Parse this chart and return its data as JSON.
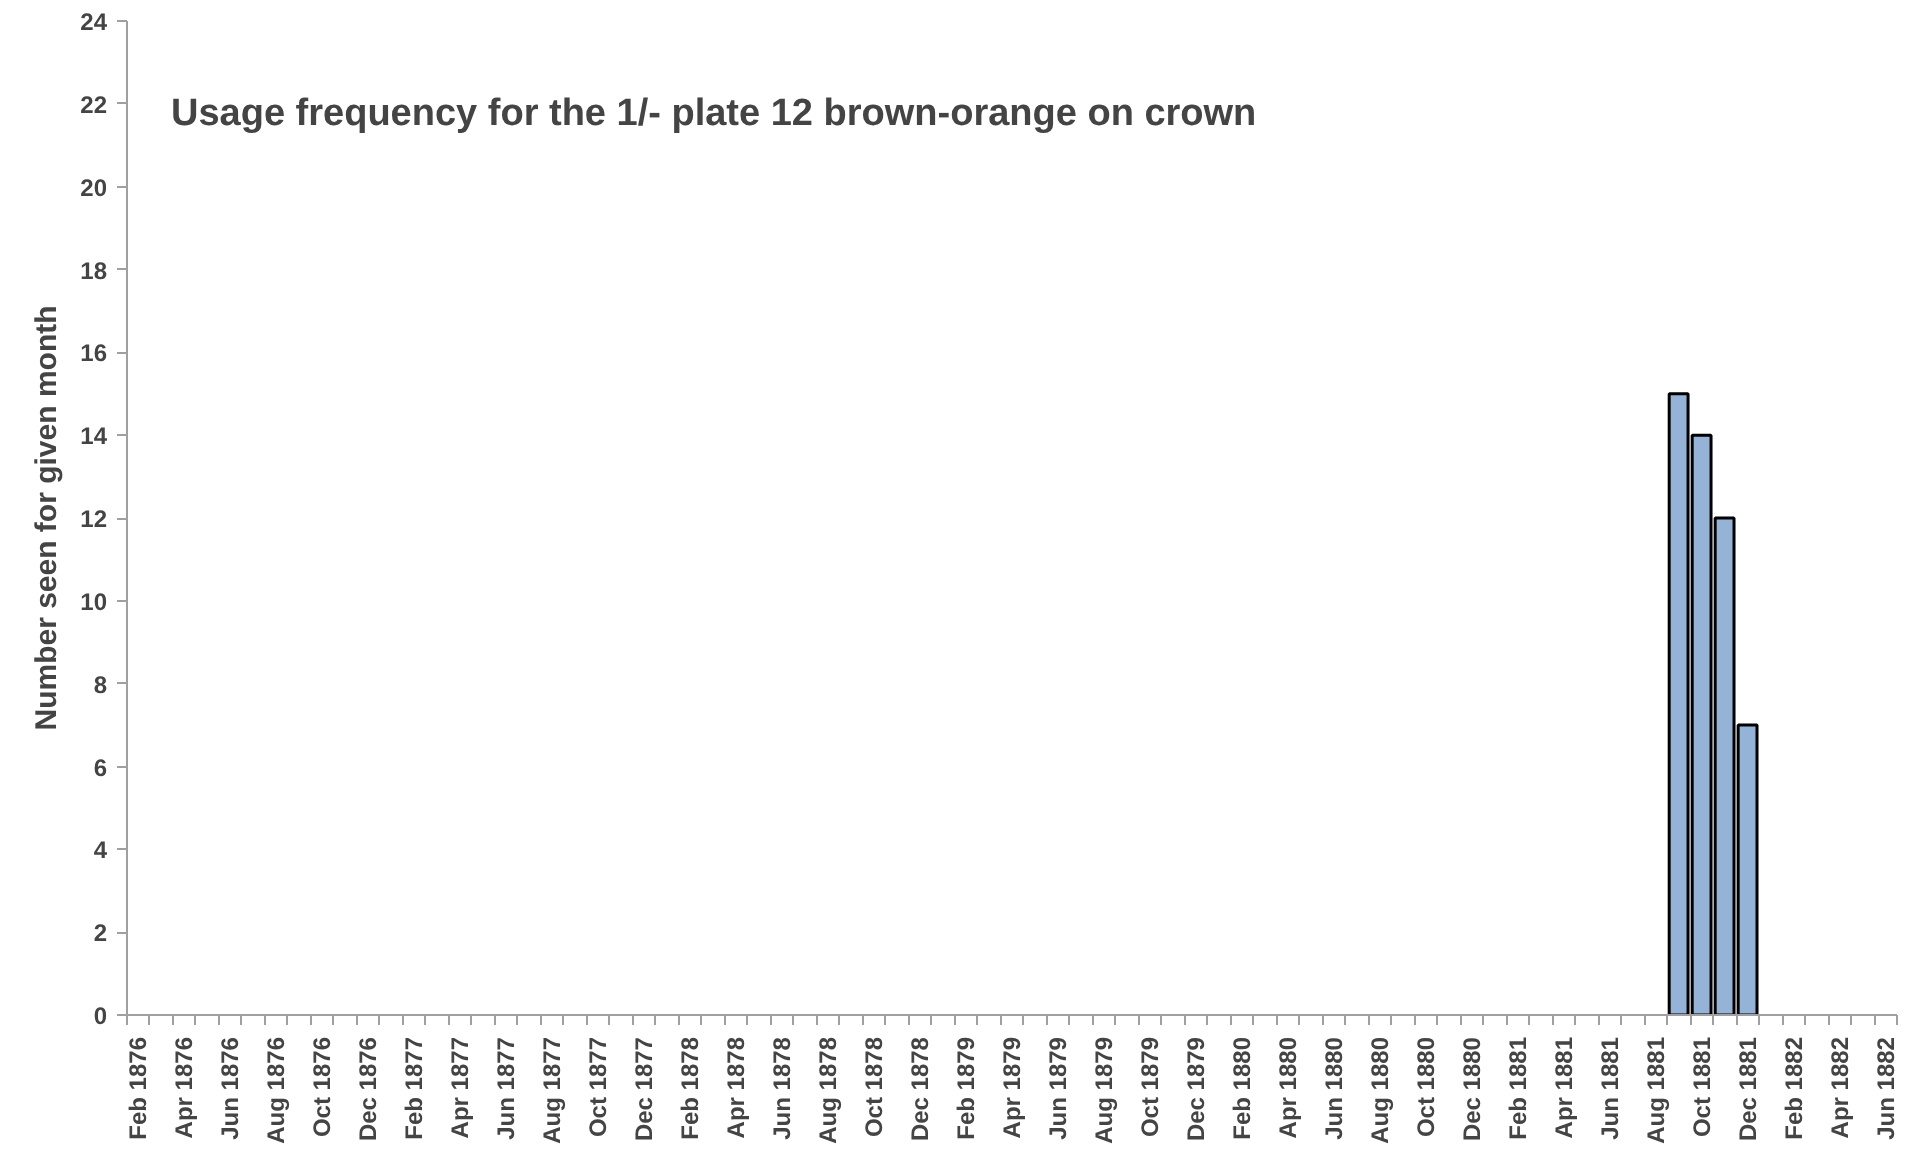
{
  "chart_data": {
    "type": "bar",
    "title": "Usage frequency for the 1/- plate 12 brown-orange on crown",
    "ylabel": "Number seen for given month",
    "categories": [
      "Feb 1876",
      null,
      "Apr 1876",
      null,
      "Jun 1876",
      null,
      "Aug 1876",
      null,
      "Oct 1876",
      null,
      "Dec 1876",
      null,
      "Feb 1877",
      null,
      "Apr 1877",
      null,
      "Jun 1877",
      null,
      "Aug 1877",
      null,
      "Oct 1877",
      null,
      "Dec 1877",
      null,
      "Feb 1878",
      null,
      "Apr 1878",
      null,
      "Jun 1878",
      null,
      "Aug 1878",
      null,
      "Oct 1878",
      null,
      "Dec 1878",
      null,
      "Feb 1879",
      null,
      "Apr 1879",
      null,
      "Jun 1879",
      null,
      "Aug 1879",
      null,
      "Oct 1879",
      null,
      "Dec 1879",
      null,
      "Feb 1880",
      null,
      "Apr 1880",
      null,
      "Jun 1880",
      null,
      "Aug 1880",
      null,
      "Oct 1880",
      null,
      "Dec 1880",
      null,
      "Feb 1881",
      null,
      "Apr 1881",
      null,
      "Jun 1881",
      null,
      "Aug 1881",
      null,
      "Oct 1881",
      null,
      "Dec 1881",
      null,
      "Feb 1882",
      null,
      "Apr 1882",
      null,
      "Jun 1882"
    ],
    "values": [
      null,
      null,
      null,
      null,
      null,
      null,
      null,
      null,
      null,
      null,
      null,
      null,
      null,
      null,
      null,
      null,
      null,
      null,
      null,
      null,
      null,
      null,
      null,
      null,
      null,
      null,
      null,
      null,
      null,
      null,
      null,
      null,
      null,
      null,
      null,
      null,
      null,
      null,
      null,
      null,
      null,
      null,
      null,
      null,
      null,
      null,
      null,
      null,
      null,
      null,
      null,
      null,
      null,
      null,
      null,
      null,
      null,
      null,
      null,
      null,
      null,
      null,
      null,
      null,
      null,
      null,
      null,
      15,
      14,
      12,
      7,
      null,
      null,
      null,
      null,
      null,
      null
    ],
    "color": "#95b3d7",
    "ylim": [
      0,
      24
    ],
    "yticks": [
      0,
      2,
      4,
      6,
      8,
      10,
      12,
      14,
      16,
      18,
      20,
      22,
      24
    ],
    "grid": false
  }
}
